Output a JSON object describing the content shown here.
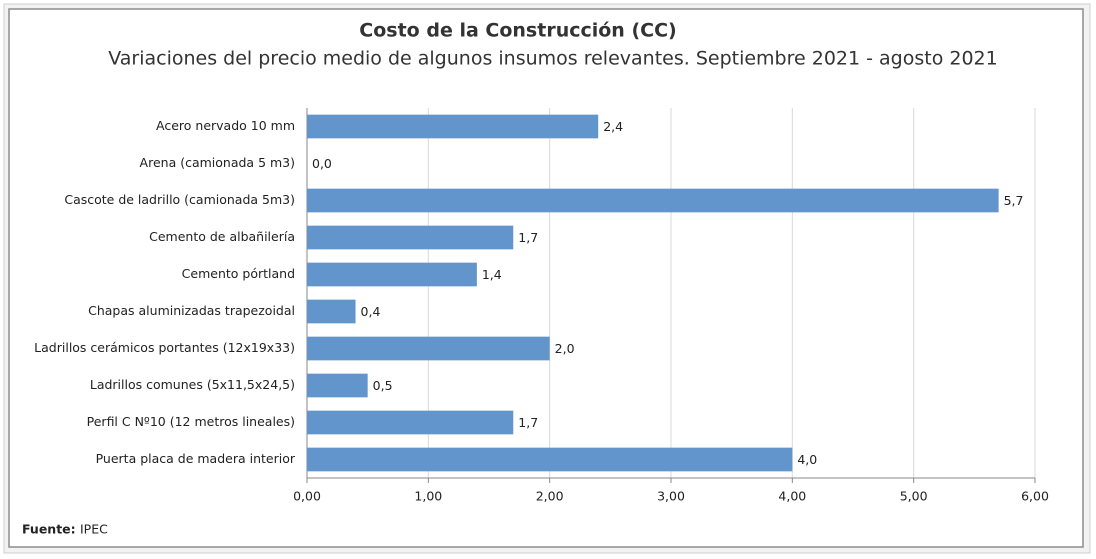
{
  "chart_data": {
    "type": "hbar",
    "title": "Costo de la Construcción (CC)",
    "subtitle": "Variaciones del precio medio de algunos insumos relevantes. Septiembre 2021 - agosto 2021",
    "categories": [
      "Acero nervado 10 mm",
      "Arena (camionada 5 m3)",
      "Cascote de ladrillo (camionada 5m3)",
      "Cemento de albañilería",
      "Cemento pórtland",
      "Chapas aluminizadas trapezoidal",
      "Ladrillos cerámicos portantes (12x19x33)",
      "Ladrillos comunes (5x11,5x24,5)",
      "Perfil C Nº10 (12 metros  lineales)",
      "Puerta placa de madera interior"
    ],
    "values": [
      2.4,
      0.0,
      5.7,
      1.7,
      1.4,
      0.4,
      2.0,
      0.5,
      1.7,
      4.0
    ],
    "value_labels": [
      "2,4",
      "0,0",
      "5,7",
      "1,7",
      "1,4",
      "0,4",
      "2,0",
      "0,5",
      "1,7",
      "4,0"
    ],
    "color": "#6195cb",
    "xlim": [
      0,
      6
    ],
    "xticks": [
      {
        "value": 0,
        "label": "0,00"
      },
      {
        "value": 1,
        "label": "1,00"
      },
      {
        "value": 2,
        "label": "2,00"
      },
      {
        "value": 3,
        "label": "3,00"
      },
      {
        "value": 4,
        "label": "4,00"
      },
      {
        "value": 5,
        "label": "5,00"
      },
      {
        "value": 6,
        "label": "6,00"
      }
    ],
    "grid": true,
    "source_label": "Fuente:",
    "source": "IPEC"
  }
}
